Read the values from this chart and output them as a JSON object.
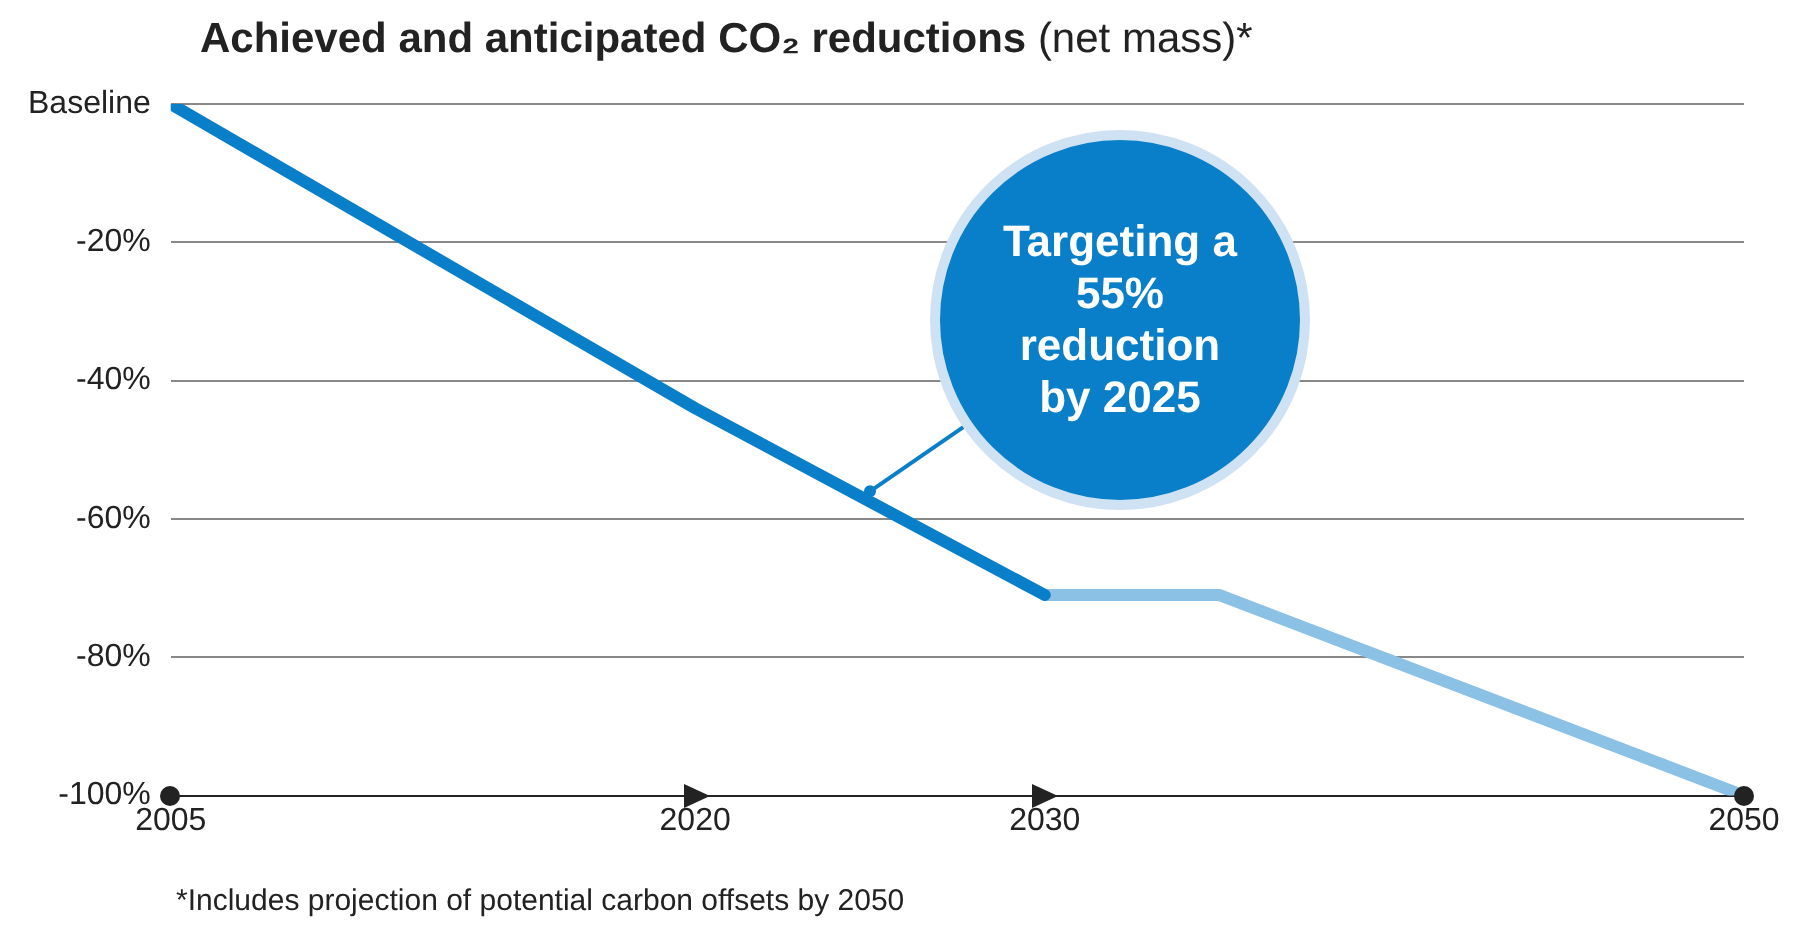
{
  "chart_data": {
    "type": "line",
    "title": "Achieved and anticipated CO₂ reductions",
    "subtitle": "(net mass)*",
    "series": [
      {
        "color": "#0a7fc9",
        "x": [
          2005,
          2020,
          2030
        ],
        "values": [
          0,
          -44,
          -71
        ]
      },
      {
        "color": "#8cc1e6",
        "x": [
          2030,
          2035,
          2050
        ],
        "values": [
          -71,
          -71,
          -100
        ]
      }
    ],
    "xlim": [
      2005,
      2050
    ],
    "xticks": [
      2005,
      2020,
      2030,
      2050
    ],
    "ylim": [
      -100,
      0
    ],
    "yticks": [
      {
        "value": -100,
        "label": "-100%"
      },
      {
        "value": -80,
        "label": "-80%"
      },
      {
        "value": -60,
        "label": "-60%"
      },
      {
        "value": -40,
        "label": "-40%"
      },
      {
        "value": -20,
        "label": "-20%"
      },
      {
        "value": 0,
        "label": "Baseline"
      }
    ],
    "grid": "y",
    "legend": false,
    "marker": "none",
    "line_style": "solid",
    "annotations": [
      {
        "text": "Targeting a 55% reduction by 2025",
        "x": 2025,
        "y": -56
      },
      "*Includes projection of potential carbon offsets by 2050"
    ]
  }
}
